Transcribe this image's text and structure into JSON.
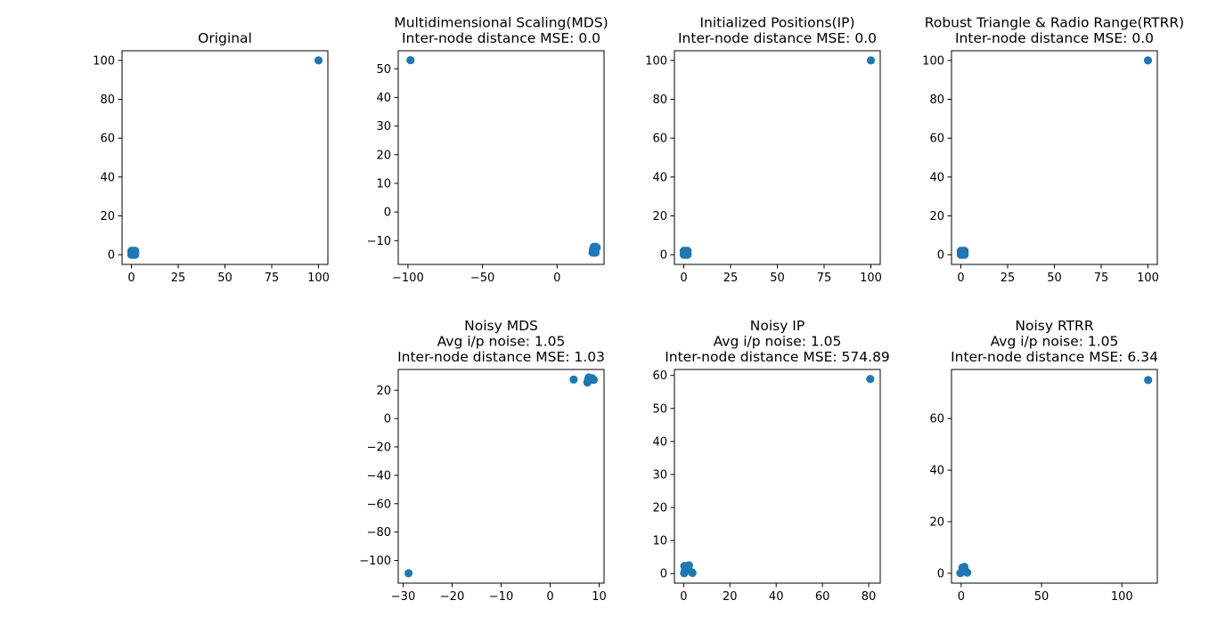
{
  "figure": {
    "marker_color": "#1f77b4",
    "axis_color": "#000000",
    "background": "#ffffff"
  },
  "chart_data": [
    {
      "id": "original",
      "type": "scatter",
      "title_lines": [
        "Original"
      ],
      "xlim": [
        -5,
        105
      ],
      "ylim": [
        -5,
        105
      ],
      "xticks": [
        0,
        25,
        50,
        75,
        100
      ],
      "xtick_labels": [
        "0",
        "25",
        "50",
        "75",
        "100"
      ],
      "yticks": [
        0,
        20,
        40,
        60,
        80,
        100
      ],
      "ytick_labels": [
        "0",
        "20",
        "40",
        "60",
        "80",
        "100"
      ],
      "points": [
        [
          0,
          0
        ],
        [
          0,
          1
        ],
        [
          0,
          2
        ],
        [
          1,
          0
        ],
        [
          1,
          1
        ],
        [
          1,
          2
        ],
        [
          2,
          0
        ],
        [
          2,
          1
        ],
        [
          2,
          2
        ],
        [
          100,
          100
        ]
      ]
    },
    {
      "id": "mds",
      "type": "scatter",
      "title_lines": [
        "Multidimensional Scaling(MDS)",
        "Inter-node distance MSE: 0.0"
      ],
      "xlim": [
        -106.5,
        31.5
      ],
      "ylim": [
        -18.3,
        56.3
      ],
      "xticks": [
        -100,
        -50,
        0
      ],
      "xtick_labels": [
        "−100",
        "−50",
        "0"
      ],
      "yticks": [
        -10,
        0,
        10,
        20,
        30,
        40,
        50
      ],
      "ytick_labels": [
        "−10",
        "0",
        "10",
        "20",
        "30",
        "40",
        "50"
      ],
      "points": [
        [
          -98.3,
          53.0
        ],
        [
          23.8,
          -14.2
        ],
        [
          24.8,
          -14.2
        ],
        [
          25.8,
          -14.2
        ],
        [
          24.1,
          -13.0
        ],
        [
          25.1,
          -13.1
        ],
        [
          26.0,
          -12.9
        ],
        [
          24.6,
          -12.2
        ],
        [
          25.7,
          -12.1
        ],
        [
          26.6,
          -12.4
        ]
      ]
    },
    {
      "id": "ip",
      "type": "scatter",
      "title_lines": [
        "Initialized Positions(IP)",
        "Inter-node distance MSE: 0.0"
      ],
      "xlim": [
        -5,
        105
      ],
      "ylim": [
        -5,
        105
      ],
      "xticks": [
        0,
        25,
        50,
        75,
        100
      ],
      "xtick_labels": [
        "0",
        "25",
        "50",
        "75",
        "100"
      ],
      "yticks": [
        0,
        20,
        40,
        60,
        80,
        100
      ],
      "ytick_labels": [
        "0",
        "20",
        "40",
        "60",
        "80",
        "100"
      ],
      "points": [
        [
          0,
          0
        ],
        [
          0,
          1
        ],
        [
          0,
          2
        ],
        [
          1,
          0
        ],
        [
          1,
          1
        ],
        [
          1,
          2
        ],
        [
          2,
          0
        ],
        [
          2,
          1
        ],
        [
          2,
          2
        ],
        [
          100,
          100
        ]
      ]
    },
    {
      "id": "rtrr",
      "type": "scatter",
      "title_lines": [
        "Robust Triangle & Radio Range(RTRR)",
        "Inter-node distance MSE: 0.0"
      ],
      "xlim": [
        -5,
        105
      ],
      "ylim": [
        -5,
        105
      ],
      "xticks": [
        0,
        25,
        50,
        75,
        100
      ],
      "xtick_labels": [
        "0",
        "25",
        "50",
        "75",
        "100"
      ],
      "yticks": [
        0,
        20,
        40,
        60,
        80,
        100
      ],
      "ytick_labels": [
        "0",
        "20",
        "40",
        "60",
        "80",
        "100"
      ],
      "points": [
        [
          0,
          0
        ],
        [
          0,
          1
        ],
        [
          0,
          2
        ],
        [
          1,
          0
        ],
        [
          1,
          1
        ],
        [
          1,
          2
        ],
        [
          2,
          0
        ],
        [
          2,
          1
        ],
        [
          2,
          2
        ],
        [
          100,
          100
        ]
      ]
    },
    {
      "id": "noisy-mds",
      "type": "scatter",
      "title_lines": [
        "Noisy MDS",
        "Avg i/p noise: 1.05",
        "Inter-node distance MSE: 1.03"
      ],
      "xlim": [
        -31.0,
        11.0
      ],
      "ylim": [
        -116.0,
        34.6
      ],
      "xticks": [
        -30,
        -20,
        -10,
        0,
        10
      ],
      "xtick_labels": [
        "−30",
        "−20",
        "−10",
        "0",
        "10"
      ],
      "yticks": [
        -100,
        -80,
        -60,
        -40,
        -20,
        0,
        20
      ],
      "ytick_labels": [
        "−100",
        "−80",
        "−60",
        "−40",
        "−20",
        "0",
        "20"
      ],
      "points": [
        [
          -28.9,
          -109.0
        ],
        [
          4.8,
          27.5
        ],
        [
          7.6,
          25.4
        ],
        [
          7.8,
          28.1
        ],
        [
          7.9,
          29.0
        ],
        [
          8.4,
          27.5
        ],
        [
          8.9,
          27.3
        ],
        [
          7.7,
          26.6
        ],
        [
          8.6,
          28.4
        ],
        [
          7.9,
          27.7
        ]
      ]
    },
    {
      "id": "noisy-ip",
      "type": "scatter",
      "title_lines": [
        "Noisy IP",
        "Avg i/p noise: 1.05",
        "Inter-node distance MSE: 574.89"
      ],
      "xlim": [
        -4.0,
        85.0
      ],
      "ylim": [
        -2.9,
        61.8
      ],
      "xticks": [
        0,
        20,
        40,
        60,
        80
      ],
      "xtick_labels": [
        "0",
        "20",
        "40",
        "60",
        "80"
      ],
      "yticks": [
        0,
        10,
        20,
        30,
        40,
        50,
        60
      ],
      "ytick_labels": [
        "0",
        "10",
        "20",
        "30",
        "40",
        "50",
        "60"
      ],
      "points": [
        [
          0.2,
          0.1
        ],
        [
          0.3,
          2.3
        ],
        [
          2.3,
          2.5
        ],
        [
          3.8,
          0.2
        ],
        [
          1.0,
          1.1
        ],
        [
          2.0,
          2.0
        ],
        [
          0.5,
          0.8
        ],
        [
          3.5,
          0.4
        ],
        [
          1.5,
          2.2
        ],
        [
          80.7,
          58.9
        ]
      ]
    },
    {
      "id": "noisy-rtrr",
      "type": "scatter",
      "title_lines": [
        "Noisy RTRR",
        "Avg i/p noise: 1.05",
        "Inter-node distance MSE: 6.34"
      ],
      "xlim": [
        -6.0,
        122.0
      ],
      "ylim": [
        -3.8,
        79.0
      ],
      "xticks": [
        0,
        50,
        100
      ],
      "xtick_labels": [
        "0",
        "50",
        "100"
      ],
      "yticks": [
        0,
        20,
        40,
        60
      ],
      "ytick_labels": [
        "0",
        "20",
        "40",
        "60"
      ],
      "points": [
        [
          -0.5,
          0.1
        ],
        [
          0.8,
          2.2
        ],
        [
          2.0,
          2.5
        ],
        [
          3.8,
          0.3
        ],
        [
          1.0,
          1.2
        ],
        [
          0.3,
          0.6
        ],
        [
          2.6,
          1.0
        ],
        [
          3.2,
          0.5
        ],
        [
          1.5,
          2.1
        ],
        [
          116.3,
          74.9
        ]
      ]
    }
  ]
}
